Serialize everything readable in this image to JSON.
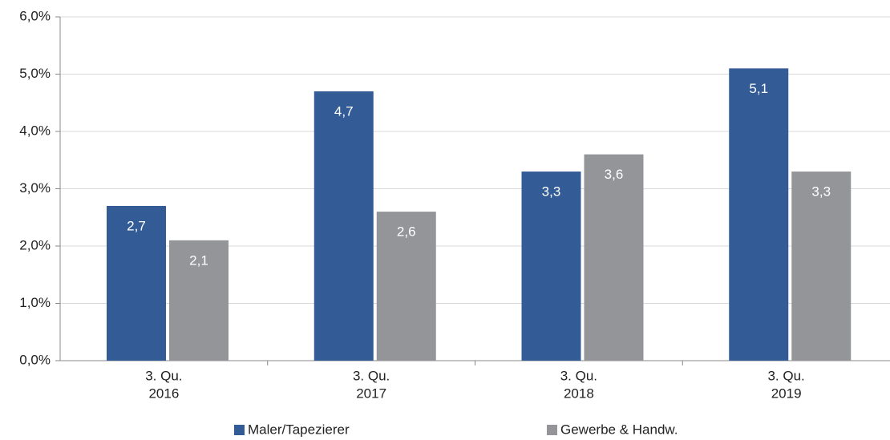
{
  "chart_data": {
    "type": "bar",
    "categories": [
      [
        "3. Qu.",
        "2016"
      ],
      [
        "3. Qu.",
        "2017"
      ],
      [
        "3. Qu.",
        "2018"
      ],
      [
        "3. Qu.",
        "2019"
      ]
    ],
    "series": [
      {
        "name": "Maler/Tapezierer",
        "color": "#335c96",
        "values": [
          2.7,
          4.7,
          3.3,
          5.1
        ],
        "value_labels": [
          "2,7",
          "4,7",
          "3,3",
          "5,1"
        ]
      },
      {
        "name": "Gewerbe & Handw.",
        "color": "#949599",
        "values": [
          2.1,
          2.6,
          3.6,
          3.3
        ],
        "value_labels": [
          "2,1",
          "2,6",
          "3,6",
          "3,3"
        ]
      }
    ],
    "ylim": [
      0,
      6
    ],
    "yticks": [
      {
        "value": 0,
        "label": "0,0%"
      },
      {
        "value": 1,
        "label": "1,0%"
      },
      {
        "value": 2,
        "label": "2,0%"
      },
      {
        "value": 3,
        "label": "3,0%"
      },
      {
        "value": 4,
        "label": "4,0%"
      },
      {
        "value": 5,
        "label": "5,0%"
      },
      {
        "value": 6,
        "label": "6,0%"
      }
    ],
    "grid": true,
    "legend": "bottom"
  }
}
